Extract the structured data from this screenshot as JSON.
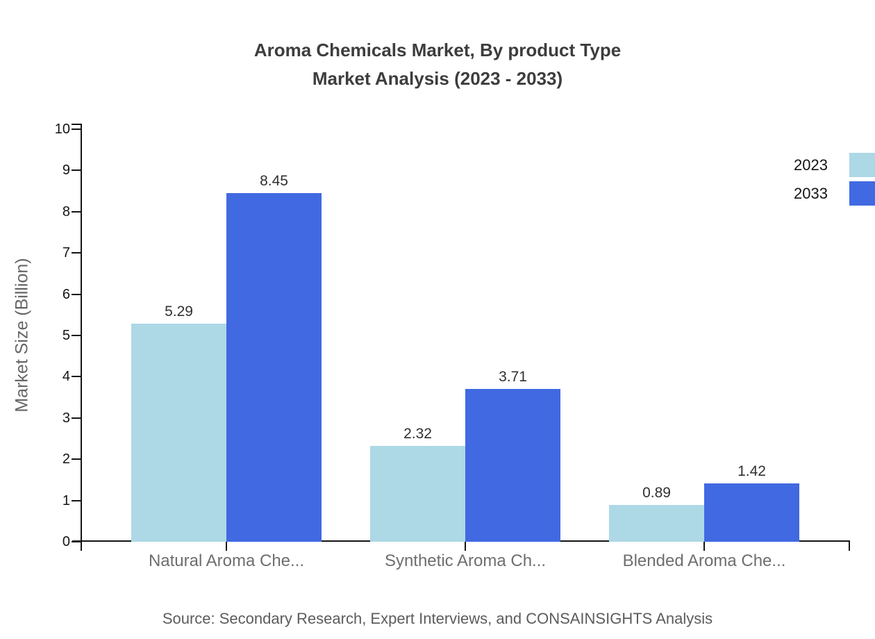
{
  "title": {
    "line1": "Aroma Chemicals Market, By product Type",
    "line2": "Market Analysis (2023 - 2033)"
  },
  "chart_data": {
    "type": "bar",
    "categories": [
      "Natural Aroma Che...",
      "Synthetic Aroma Ch...",
      "Blended Aroma Che..."
    ],
    "series": [
      {
        "name": "2023",
        "color": "#ADD8E6",
        "values": [
          5.29,
          2.32,
          0.89
        ]
      },
      {
        "name": "2033",
        "color": "#4169E1",
        "values": [
          8.45,
          3.71,
          1.42
        ]
      }
    ],
    "value_labels": [
      [
        "5.29",
        "2.32",
        "0.89"
      ],
      [
        "8.45",
        "3.71",
        "1.42"
      ]
    ],
    "title": "Aroma Chemicals Market, By product Type Market Analysis (2023 - 2033)",
    "xlabel": "",
    "ylabel": "Market Size (Billion)",
    "ylim": [
      0,
      10
    ],
    "ytick_step": 1,
    "ytick_labels": [
      "0",
      "1",
      "2",
      "3",
      "4",
      "5",
      "6",
      "7",
      "8",
      "9",
      "10"
    ],
    "grid": false,
    "legend_position": "right"
  },
  "source": "Source: Secondary Research, Expert Interviews, and CONSAINSIGHTS Analysis",
  "colors": {
    "series_2023": "#ADD8E6",
    "series_2033": "#4169E1",
    "axis": "#141414",
    "title_text": "#3d3d3d",
    "category_text": "#6e6e6e",
    "source_text": "#5c5c5c"
  }
}
